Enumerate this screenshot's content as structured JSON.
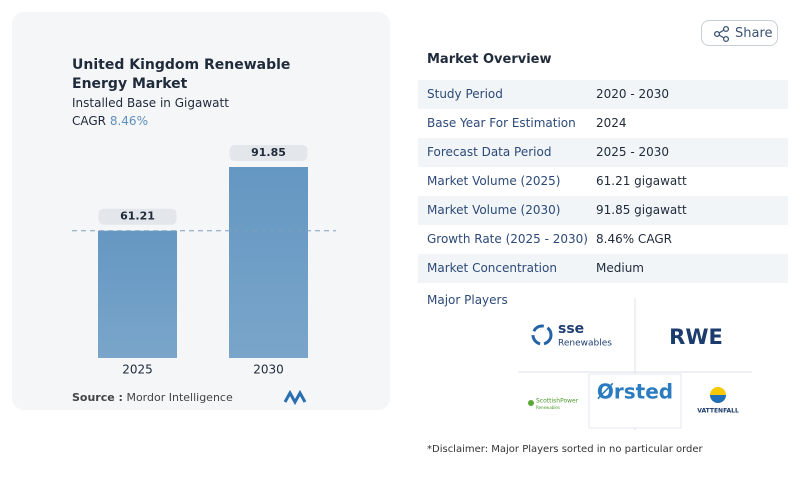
{
  "chart_data": {
    "type": "bar",
    "title": "United Kingdom Renewable Energy Market",
    "subtitle": "Installed Base in Gigawatt",
    "cagr_label": "CAGR",
    "cagr_value": "8.46%",
    "categories": [
      "2025",
      "2030"
    ],
    "values": [
      61.21,
      91.85
    ],
    "color": "#6497c2",
    "source_label": "Source :",
    "source": "Mordor Intelligence"
  },
  "share": "Share",
  "overview": {
    "title": "Market Overview",
    "rows": [
      [
        "Study Period",
        "2020 - 2030"
      ],
      [
        "Base Year For Estimation",
        "2024"
      ],
      [
        "Forecast Data Period",
        "2025 - 2030"
      ],
      [
        "Market Volume (2025)",
        "61.21 gigawatt"
      ],
      [
        "Market Volume (2030)",
        "91.85 gigawatt"
      ],
      [
        "Growth Rate (2025 - 2030)",
        "8.46% CAGR"
      ],
      [
        "Market Concentration",
        "Medium"
      ]
    ]
  },
  "players": {
    "title": "Major Players",
    "logos": [
      "sse",
      "Renewables",
      "RWE",
      "ScottishPower",
      "Renewables",
      "Ørsted",
      "VATTENFALL"
    ]
  },
  "disclaimer": "*Disclaimer: Major Players sorted in no particular order"
}
